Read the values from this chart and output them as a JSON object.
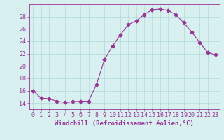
{
  "x": [
    0,
    1,
    2,
    3,
    4,
    5,
    6,
    7,
    8,
    9,
    10,
    11,
    12,
    13,
    14,
    15,
    16,
    17,
    18,
    19,
    20,
    21,
    22,
    23
  ],
  "y": [
    16.0,
    14.8,
    14.7,
    14.3,
    14.1,
    14.2,
    14.3,
    14.3,
    17.0,
    21.0,
    23.2,
    25.0,
    26.7,
    27.3,
    28.3,
    29.1,
    29.2,
    29.0,
    28.3,
    27.0,
    25.5,
    23.8,
    22.2,
    21.8
  ],
  "line_color": "#993399",
  "marker": "D",
  "markersize": 2.5,
  "bg_color": "#d8f0f0",
  "grid_color": "#b0d8d8",
  "xlabel": "Windchill (Refroidissement éolien,°C)",
  "ylabel": "",
  "ylim": [
    13.0,
    30.0
  ],
  "xlim": [
    -0.5,
    23.5
  ],
  "yticks": [
    14,
    16,
    18,
    20,
    22,
    24,
    26,
    28
  ],
  "xticks": [
    0,
    1,
    2,
    3,
    4,
    5,
    6,
    7,
    8,
    9,
    10,
    11,
    12,
    13,
    14,
    15,
    16,
    17,
    18,
    19,
    20,
    21,
    22,
    23
  ],
  "tick_color": "#993399",
  "label_color": "#993399",
  "font_size": 6,
  "xlabel_fontsize": 6.5
}
